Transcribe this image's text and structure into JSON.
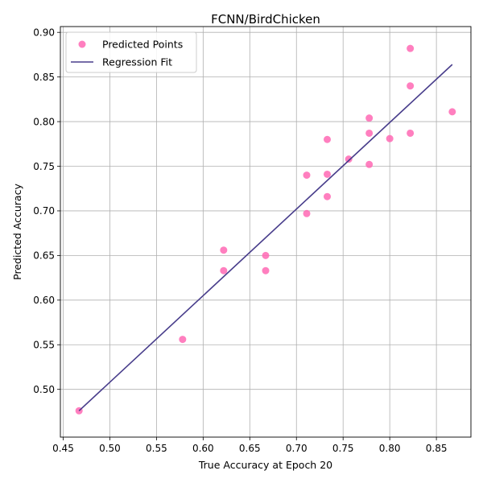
{
  "chart_data": {
    "type": "scatter",
    "title": "FCNN/BirdChicken",
    "xlabel": "True Accuracy at Epoch 20",
    "ylabel": "Predicted Accuracy",
    "xlim": [
      0.447,
      0.887
    ],
    "ylim": [
      0.4465,
      0.9065
    ],
    "xticks": [
      "0.45",
      "0.50",
      "0.55",
      "0.60",
      "0.65",
      "0.70",
      "0.75",
      "0.80",
      "0.85"
    ],
    "yticks": [
      "0.50",
      "0.55",
      "0.60",
      "0.65",
      "0.70",
      "0.75",
      "0.80",
      "0.85",
      "0.90"
    ],
    "grid": true,
    "legend_position": "top-left",
    "series": [
      {
        "name": "Predicted Points",
        "kind": "scatter",
        "color": "#ff69b4",
        "points": [
          [
            0.467,
            0.476
          ],
          [
            0.578,
            0.556
          ],
          [
            0.622,
            0.656
          ],
          [
            0.622,
            0.633
          ],
          [
            0.667,
            0.65
          ],
          [
            0.667,
            0.633
          ],
          [
            0.711,
            0.74
          ],
          [
            0.711,
            0.697
          ],
          [
            0.733,
            0.78
          ],
          [
            0.733,
            0.741
          ],
          [
            0.733,
            0.716
          ],
          [
            0.756,
            0.758
          ],
          [
            0.778,
            0.804
          ],
          [
            0.778,
            0.787
          ],
          [
            0.778,
            0.752
          ],
          [
            0.8,
            0.781
          ],
          [
            0.822,
            0.882
          ],
          [
            0.822,
            0.84
          ],
          [
            0.822,
            0.787
          ],
          [
            0.867,
            0.811
          ]
        ]
      },
      {
        "name": "Regression Fit",
        "kind": "line",
        "color": "#483d8b",
        "points": [
          [
            0.467,
            0.476
          ],
          [
            0.867,
            0.864
          ]
        ]
      }
    ]
  }
}
